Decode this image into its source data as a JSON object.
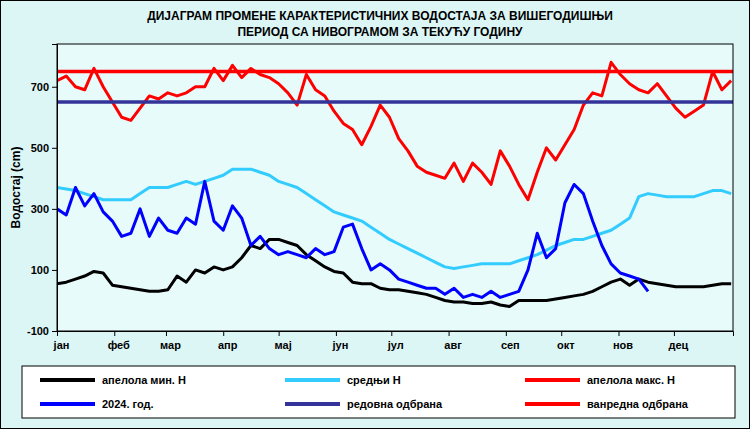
{
  "chart_data": {
    "type": "line",
    "title": [
      "ДИЈАГРАМ ПРОМЕНЕ КАРАКТЕРИСТИЧНИХ ВОДОСТАЈА ЗА ВИШЕГОДИШЊИ",
      "ПЕРИОД СА НИВОГРАМОМ ЗА ТЕКУЋУ ГОДИНУ"
    ],
    "y_label": "Водостај (cm)",
    "x": [
      0,
      5,
      10,
      15,
      20,
      25,
      30,
      35,
      40,
      45,
      50,
      55,
      60,
      65,
      70,
      75,
      80,
      85,
      90,
      95,
      100,
      105,
      110,
      115,
      120,
      125,
      130,
      135,
      140,
      145,
      150,
      155,
      160,
      165,
      170,
      175,
      180,
      185,
      190,
      195,
      200,
      205,
      210,
      215,
      220,
      225,
      230,
      235,
      240,
      245,
      250,
      255,
      260,
      265,
      270,
      275,
      280,
      285,
      290,
      295,
      300,
      305,
      310,
      315,
      320,
      325,
      330,
      335,
      340,
      345,
      350,
      355,
      360,
      365
    ],
    "xlim": [
      0,
      366
    ],
    "xticks": [
      {
        "value": 0,
        "label": "јан"
      },
      {
        "value": 31,
        "label": "феб"
      },
      {
        "value": 59,
        "label": "мар"
      },
      {
        "value": 90,
        "label": "апр"
      },
      {
        "value": 120,
        "label": "мај"
      },
      {
        "value": 151,
        "label": "јун"
      },
      {
        "value": 181,
        "label": "јул"
      },
      {
        "value": 212,
        "label": "авг"
      },
      {
        "value": 243,
        "label": "сеп"
      },
      {
        "value": 273,
        "label": "окт"
      },
      {
        "value": 304,
        "label": "нов"
      },
      {
        "value": 334,
        "label": "дец"
      }
    ],
    "ylim": [
      -100,
      840
    ],
    "yticks": [
      -100,
      100,
      300,
      500,
      700
    ],
    "grid": false,
    "legend": "bottom",
    "series": [
      {
        "name": "апелола мин. H",
        "color": "#000000",
        "type": "line",
        "values": [
          55,
          60,
          70,
          80,
          95,
          90,
          50,
          45,
          40,
          35,
          30,
          30,
          35,
          80,
          60,
          100,
          90,
          110,
          100,
          110,
          140,
          180,
          170,
          200,
          200,
          190,
          180,
          150,
          130,
          110,
          95,
          90,
          60,
          55,
          55,
          40,
          35,
          35,
          30,
          25,
          20,
          10,
          0,
          -5,
          -5,
          -10,
          -10,
          -5,
          -15,
          -20,
          0,
          0,
          0,
          0,
          5,
          10,
          15,
          20,
          30,
          45,
          60,
          70,
          50,
          70,
          60,
          55,
          50,
          45,
          45,
          45,
          45,
          50,
          55,
          55
        ]
      },
      {
        "name": "средњи H",
        "color": "#33ccff",
        "type": "line",
        "values": [
          370,
          365,
          360,
          350,
          340,
          330,
          330,
          330,
          330,
          350,
          370,
          370,
          370,
          380,
          390,
          380,
          390,
          400,
          410,
          430,
          430,
          430,
          420,
          410,
          390,
          380,
          370,
          350,
          330,
          310,
          290,
          280,
          270,
          260,
          240,
          220,
          200,
          185,
          170,
          155,
          140,
          125,
          110,
          105,
          110,
          115,
          120,
          120,
          120,
          120,
          130,
          140,
          150,
          165,
          180,
          190,
          200,
          200,
          210,
          220,
          230,
          250,
          270,
          340,
          350,
          345,
          340,
          340,
          340,
          340,
          350,
          360,
          360,
          350
        ]
      },
      {
        "name": "апелола макс. H",
        "color": "#ff0000",
        "type": "line",
        "values": [
          720,
          735,
          700,
          690,
          760,
          700,
          650,
          600,
          590,
          630,
          670,
          660,
          680,
          670,
          680,
          700,
          700,
          760,
          720,
          770,
          730,
          760,
          740,
          730,
          710,
          680,
          640,
          740,
          690,
          670,
          620,
          580,
          560,
          510,
          570,
          640,
          600,
          530,
          490,
          440,
          420,
          410,
          400,
          450,
          390,
          450,
          420,
          380,
          490,
          440,
          380,
          330,
          420,
          500,
          460,
          510,
          560,
          640,
          680,
          670,
          780,
          740,
          710,
          690,
          680,
          710,
          670,
          630,
          600,
          620,
          640,
          750,
          690,
          720
        ]
      },
      {
        "name": "2024. год.",
        "color": "#0000ff",
        "type": "line",
        "values": [
          300,
          280,
          370,
          310,
          350,
          290,
          260,
          210,
          220,
          300,
          210,
          270,
          230,
          220,
          270,
          250,
          390,
          260,
          230,
          310,
          270,
          180,
          210,
          170,
          150,
          160,
          150,
          140,
          170,
          150,
          160,
          240,
          250,
          170,
          100,
          120,
          100,
          70,
          60,
          50,
          40,
          40,
          20,
          40,
          10,
          20,
          10,
          30,
          10,
          20,
          30,
          100,
          220,
          140,
          170,
          320,
          380,
          350,
          260,
          180,
          120,
          90,
          80,
          70,
          30,
          null,
          null,
          null,
          null,
          null,
          null,
          null,
          null,
          null
        ]
      },
      {
        "name": "редовна одбрана",
        "color": "#333399",
        "type": "hline",
        "value": 650
      },
      {
        "name": "ванредна одбрана",
        "color": "#ff0000",
        "type": "hline",
        "value": 750
      }
    ]
  }
}
